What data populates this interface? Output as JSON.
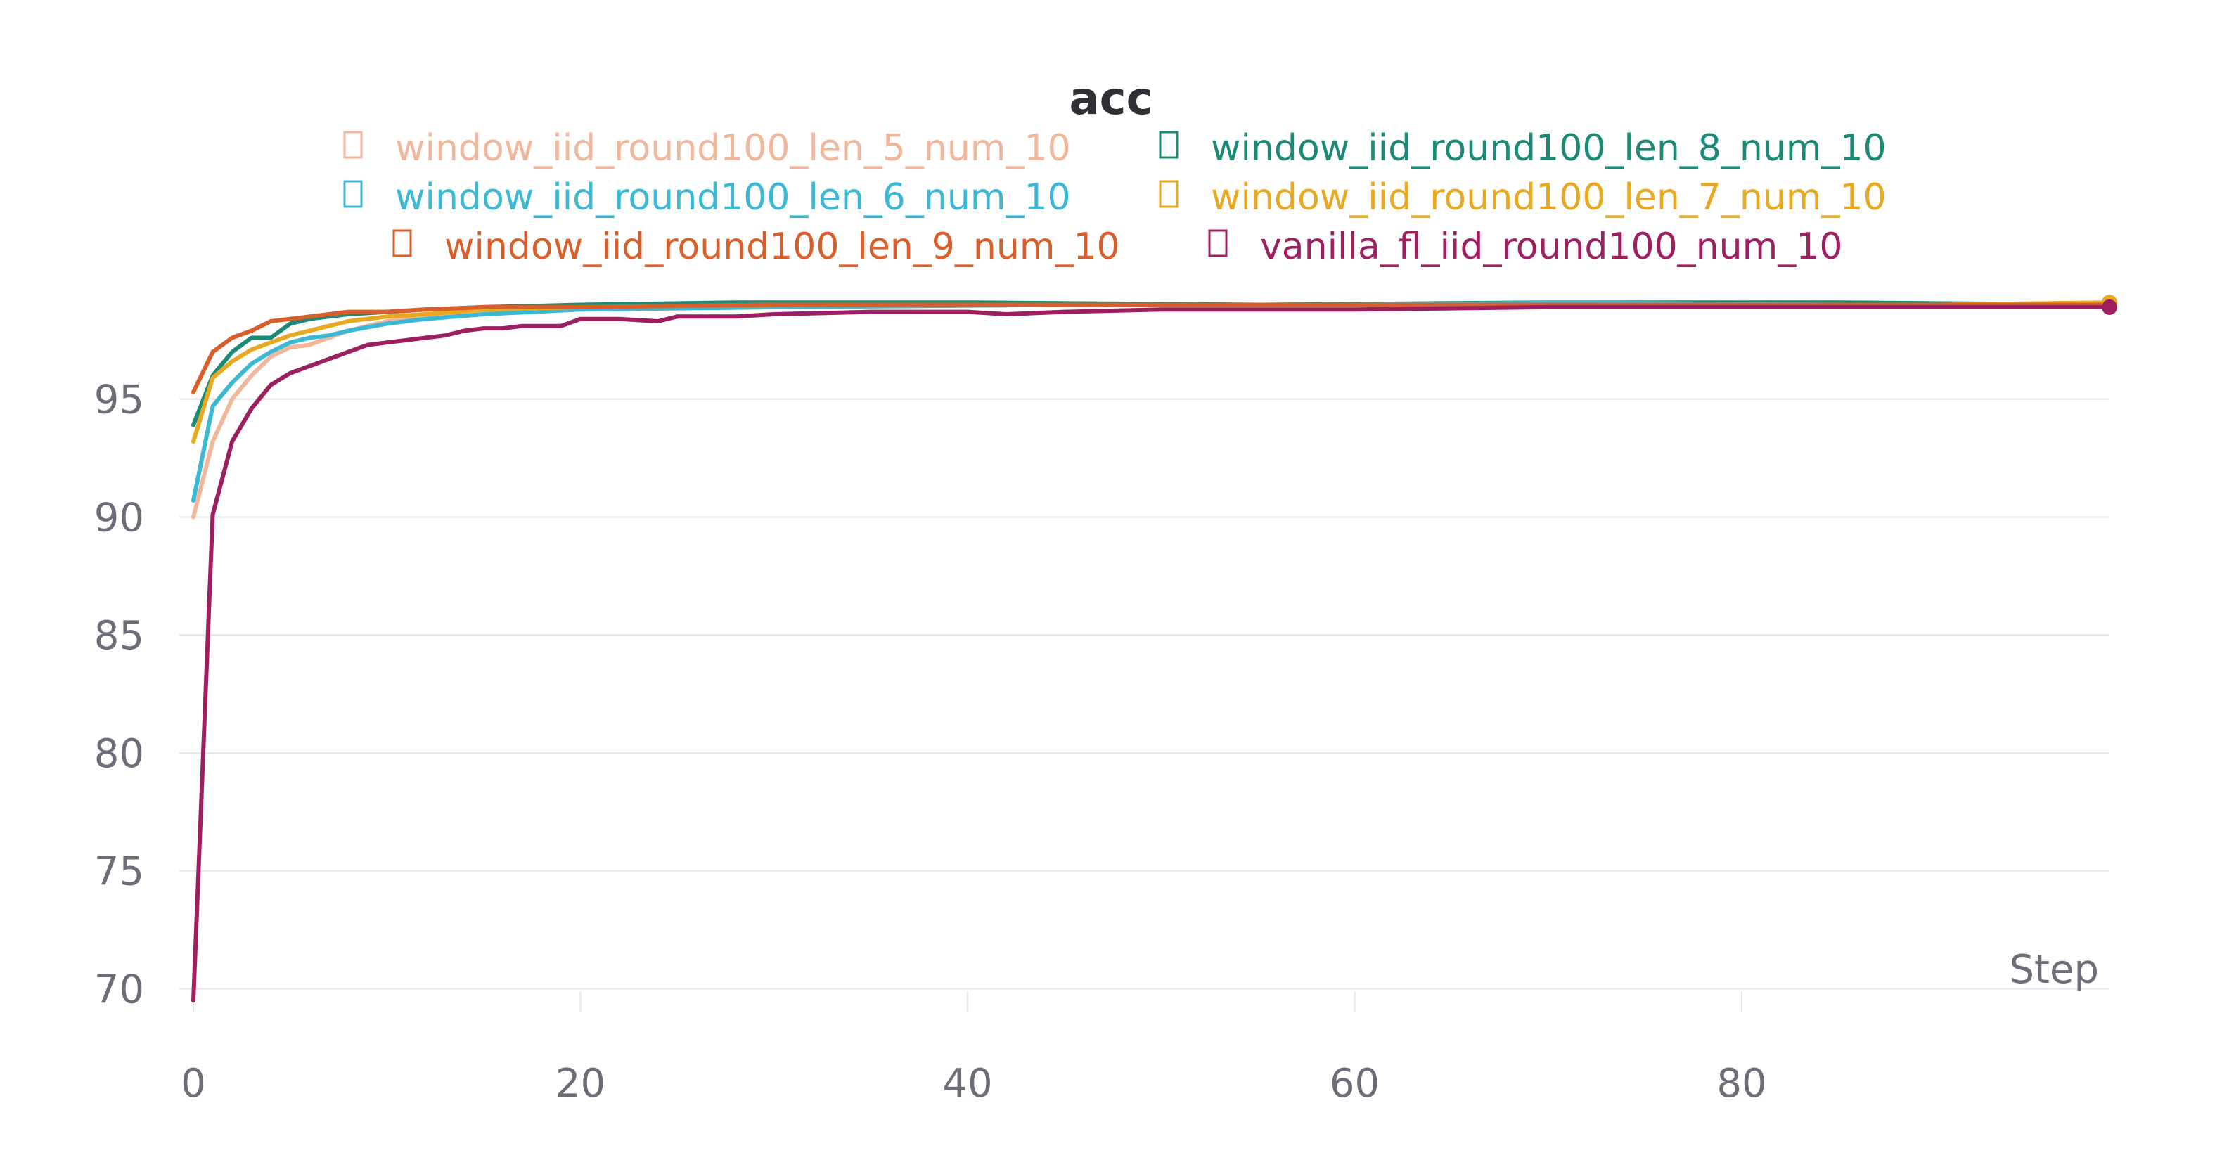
{
  "chart_data": {
    "type": "line",
    "title": "acc",
    "xlabel": "Step",
    "ylabel": "",
    "xlim": [
      0,
      99
    ],
    "ylim": [
      69,
      100
    ],
    "xticks": [
      0,
      20,
      40,
      60,
      80
    ],
    "yticks": [
      70,
      75,
      80,
      85,
      90,
      95
    ],
    "grid": true,
    "legend_position": "top-center",
    "series": [
      {
        "name": "window_iid_round100_len_5_num_10",
        "color": "#f1b79d",
        "points": [
          [
            0,
            90.0
          ],
          [
            1,
            93.2
          ],
          [
            2,
            95.0
          ],
          [
            3,
            96.0
          ],
          [
            4,
            96.8
          ],
          [
            5,
            97.2
          ],
          [
            6,
            97.3
          ],
          [
            7,
            97.6
          ],
          [
            8,
            97.9
          ],
          [
            9,
            98.1
          ],
          [
            10,
            98.3
          ],
          [
            12,
            98.5
          ],
          [
            15,
            98.7
          ],
          [
            20,
            98.8
          ],
          [
            30,
            98.9
          ],
          [
            45,
            99.0
          ],
          [
            60,
            99.0
          ],
          [
            75,
            99.0
          ],
          [
            90,
            99.0
          ],
          [
            99,
            99.1
          ]
        ]
      },
      {
        "name": "window_iid_round100_len_8_num_10",
        "color": "#1a8a76",
        "points": [
          [
            0,
            93.9
          ],
          [
            1,
            96.0
          ],
          [
            2,
            97.0
          ],
          [
            3,
            97.6
          ],
          [
            4,
            97.6
          ],
          [
            5,
            98.2
          ],
          [
            6,
            98.4
          ],
          [
            7,
            98.5
          ],
          [
            8,
            98.6
          ],
          [
            10,
            98.7
          ],
          [
            12,
            98.8
          ],
          [
            15,
            98.9
          ],
          [
            20,
            99.0
          ],
          [
            28,
            99.1
          ],
          [
            40,
            99.1
          ],
          [
            55,
            99.0
          ],
          [
            70,
            99.1
          ],
          [
            85,
            99.1
          ],
          [
            99,
            99.0
          ]
        ]
      },
      {
        "name": "window_iid_round100_len_6_num_10",
        "color": "#3bb8d4",
        "points": [
          [
            0,
            90.7
          ],
          [
            1,
            94.7
          ],
          [
            2,
            95.7
          ],
          [
            3,
            96.5
          ],
          [
            4,
            97.0
          ],
          [
            5,
            97.4
          ],
          [
            6,
            97.6
          ],
          [
            7,
            97.7
          ],
          [
            8,
            97.9
          ],
          [
            10,
            98.2
          ],
          [
            12,
            98.4
          ],
          [
            15,
            98.6
          ],
          [
            20,
            98.8
          ],
          [
            30,
            98.9
          ],
          [
            45,
            99.0
          ],
          [
            60,
            99.0
          ],
          [
            71,
            99.1
          ],
          [
            85,
            99.0
          ],
          [
            99,
            99.0
          ]
        ]
      },
      {
        "name": "window_iid_round100_len_7_num_10",
        "color": "#e8a920",
        "points": [
          [
            0,
            93.2
          ],
          [
            1,
            95.9
          ],
          [
            2,
            96.6
          ],
          [
            3,
            97.1
          ],
          [
            4,
            97.4
          ],
          [
            5,
            97.7
          ],
          [
            6,
            97.9
          ],
          [
            7,
            98.1
          ],
          [
            8,
            98.3
          ],
          [
            10,
            98.5
          ],
          [
            12,
            98.6
          ],
          [
            15,
            98.8
          ],
          [
            20,
            98.9
          ],
          [
            30,
            99.0
          ],
          [
            45,
            99.0
          ],
          [
            60,
            99.0
          ],
          [
            75,
            99.0
          ],
          [
            90,
            99.0
          ],
          [
            99,
            99.1
          ]
        ]
      },
      {
        "name": "window_iid_round100_len_9_num_10",
        "color": "#d95f2a",
        "points": [
          [
            0,
            95.3
          ],
          [
            1,
            97.0
          ],
          [
            2,
            97.6
          ],
          [
            3,
            97.9
          ],
          [
            4,
            98.3
          ],
          [
            5,
            98.4
          ],
          [
            6,
            98.5
          ],
          [
            7,
            98.6
          ],
          [
            8,
            98.7
          ],
          [
            10,
            98.7
          ],
          [
            12,
            98.8
          ],
          [
            15,
            98.9
          ],
          [
            20,
            98.9
          ],
          [
            30,
            99.0
          ],
          [
            45,
            99.0
          ],
          [
            60,
            99.0
          ],
          [
            75,
            99.0
          ],
          [
            90,
            99.0
          ],
          [
            99,
            99.0
          ]
        ]
      },
      {
        "name": "vanilla_fl_iid_round100_num_10",
        "color": "#9e1f5f",
        "points": [
          [
            0,
            69.5
          ],
          [
            1,
            90.1
          ],
          [
            2,
            93.2
          ],
          [
            3,
            94.6
          ],
          [
            4,
            95.6
          ],
          [
            5,
            96.1
          ],
          [
            6,
            96.4
          ],
          [
            7,
            96.7
          ],
          [
            8,
            97.0
          ],
          [
            9,
            97.3
          ],
          [
            10,
            97.4
          ],
          [
            11,
            97.5
          ],
          [
            12,
            97.6
          ],
          [
            13,
            97.7
          ],
          [
            14,
            97.9
          ],
          [
            15,
            98.0
          ],
          [
            16,
            98.0
          ],
          [
            17,
            98.1
          ],
          [
            18,
            98.1
          ],
          [
            19,
            98.1
          ],
          [
            20,
            98.4
          ],
          [
            22,
            98.4
          ],
          [
            24,
            98.3
          ],
          [
            25,
            98.5
          ],
          [
            28,
            98.5
          ],
          [
            30,
            98.6
          ],
          [
            35,
            98.7
          ],
          [
            40,
            98.7
          ],
          [
            42,
            98.6
          ],
          [
            45,
            98.7
          ],
          [
            50,
            98.8
          ],
          [
            55,
            98.8
          ],
          [
            60,
            98.8
          ],
          [
            70,
            98.9
          ],
          [
            80,
            98.9
          ],
          [
            90,
            98.9
          ],
          [
            99,
            98.9
          ]
        ]
      }
    ]
  }
}
